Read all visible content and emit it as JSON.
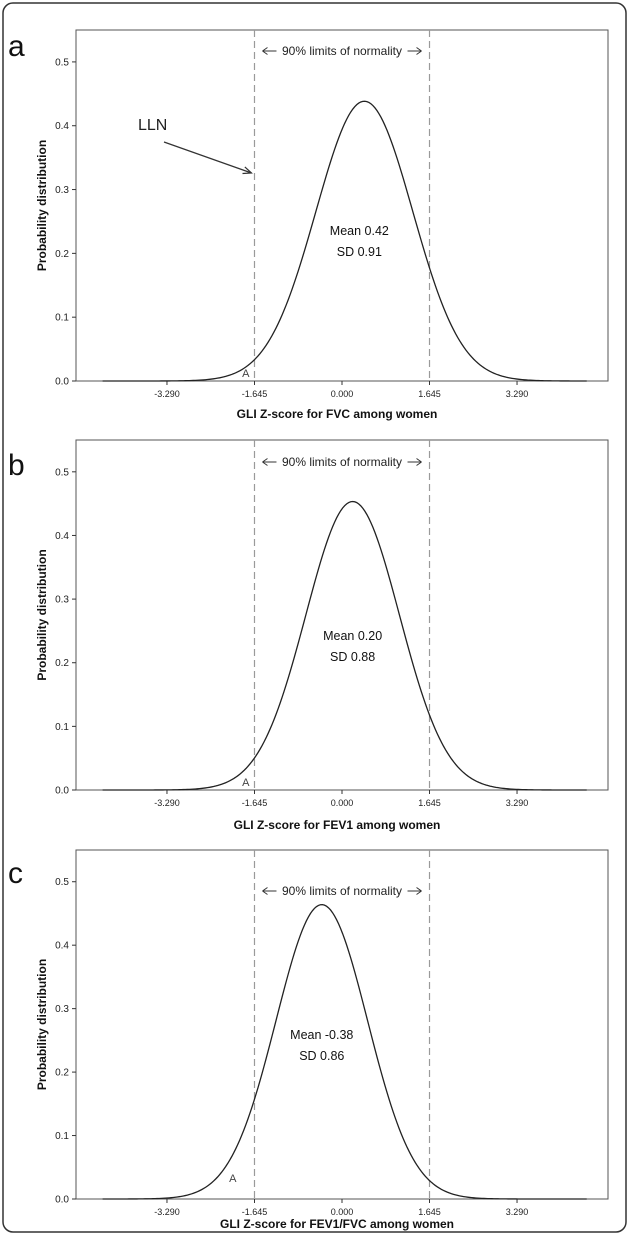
{
  "colors": {
    "curve": "#222222",
    "limit_line": "#9a9a9a",
    "frame": "#555555",
    "axis": "#333333"
  },
  "chart_data": [
    {
      "type": "line",
      "panel": "a",
      "xlabel": "GLI Z-score for FVC among women",
      "ylabel": "Probability distribution",
      "x_ticks": [
        -3.29,
        -1.645,
        0.0,
        1.645,
        3.29
      ],
      "x_tick_labels": [
        "-3.290",
        "-1.645",
        "0.000",
        "1.645",
        "3.290"
      ],
      "y_ticks": [
        0.0,
        0.1,
        0.2,
        0.3,
        0.4,
        0.5
      ],
      "y_tick_labels": [
        "0.0",
        "0.1",
        "0.2",
        "0.3",
        "0.4",
        "0.5"
      ],
      "xlim": [
        -5.0,
        5.0
      ],
      "ylim": [
        0.0,
        0.55
      ],
      "curve": {
        "distribution": "normal",
        "mean": 0.42,
        "sd": 0.91,
        "x_range": [
          -4.5,
          4.6
        ]
      },
      "limit_lines": [
        -1.645,
        1.645
      ],
      "limits_label": "90% limits of normality",
      "stats_lines": [
        "Mean 0.42",
        "SD 0.91"
      ],
      "lln_label": "LLN",
      "point_label": "A"
    },
    {
      "type": "line",
      "panel": "b",
      "xlabel": "GLI Z-score for FEV1 among women",
      "ylabel": "Probability distribution",
      "x_ticks": [
        -3.29,
        -1.645,
        0.0,
        1.645,
        3.29
      ],
      "x_tick_labels": [
        "-3.290",
        "-1.645",
        "0.000",
        "1.645",
        "3.290"
      ],
      "y_ticks": [
        0.0,
        0.1,
        0.2,
        0.3,
        0.4,
        0.5
      ],
      "y_tick_labels": [
        "0.0",
        "0.1",
        "0.2",
        "0.3",
        "0.4",
        "0.5"
      ],
      "xlim": [
        -5.0,
        5.0
      ],
      "ylim": [
        0.0,
        0.55
      ],
      "curve": {
        "distribution": "normal",
        "mean": 0.2,
        "sd": 0.88,
        "x_range": [
          -4.5,
          4.6
        ]
      },
      "limit_lines": [
        -1.645,
        1.645
      ],
      "limits_label": "90% limits of normality",
      "stats_lines": [
        "Mean 0.20",
        "SD 0.88"
      ],
      "point_label": "A"
    },
    {
      "type": "line",
      "panel": "c",
      "xlabel": "GLI Z-score for FEV1/FVC among women",
      "ylabel": "Probability distribution",
      "x_ticks": [
        -3.29,
        -1.645,
        0.0,
        1.645,
        3.29
      ],
      "x_tick_labels": [
        "-3.290",
        "-1.645",
        "0.000",
        "1.645",
        "3.290"
      ],
      "y_ticks": [
        0.0,
        0.1,
        0.2,
        0.3,
        0.4,
        0.5
      ],
      "y_tick_labels": [
        "0.0",
        "0.1",
        "0.2",
        "0.3",
        "0.4",
        "0.5"
      ],
      "xlim": [
        -5.0,
        5.0
      ],
      "ylim": [
        0.0,
        0.55
      ],
      "curve": {
        "distribution": "normal",
        "mean": -0.38,
        "sd": 0.86,
        "x_range": [
          -4.5,
          4.6
        ]
      },
      "limit_lines": [
        -1.645,
        1.645
      ],
      "limits_label": "90% limits of normality",
      "stats_lines": [
        "Mean -0.38",
        "SD 0.86"
      ],
      "point_label": "A"
    }
  ]
}
